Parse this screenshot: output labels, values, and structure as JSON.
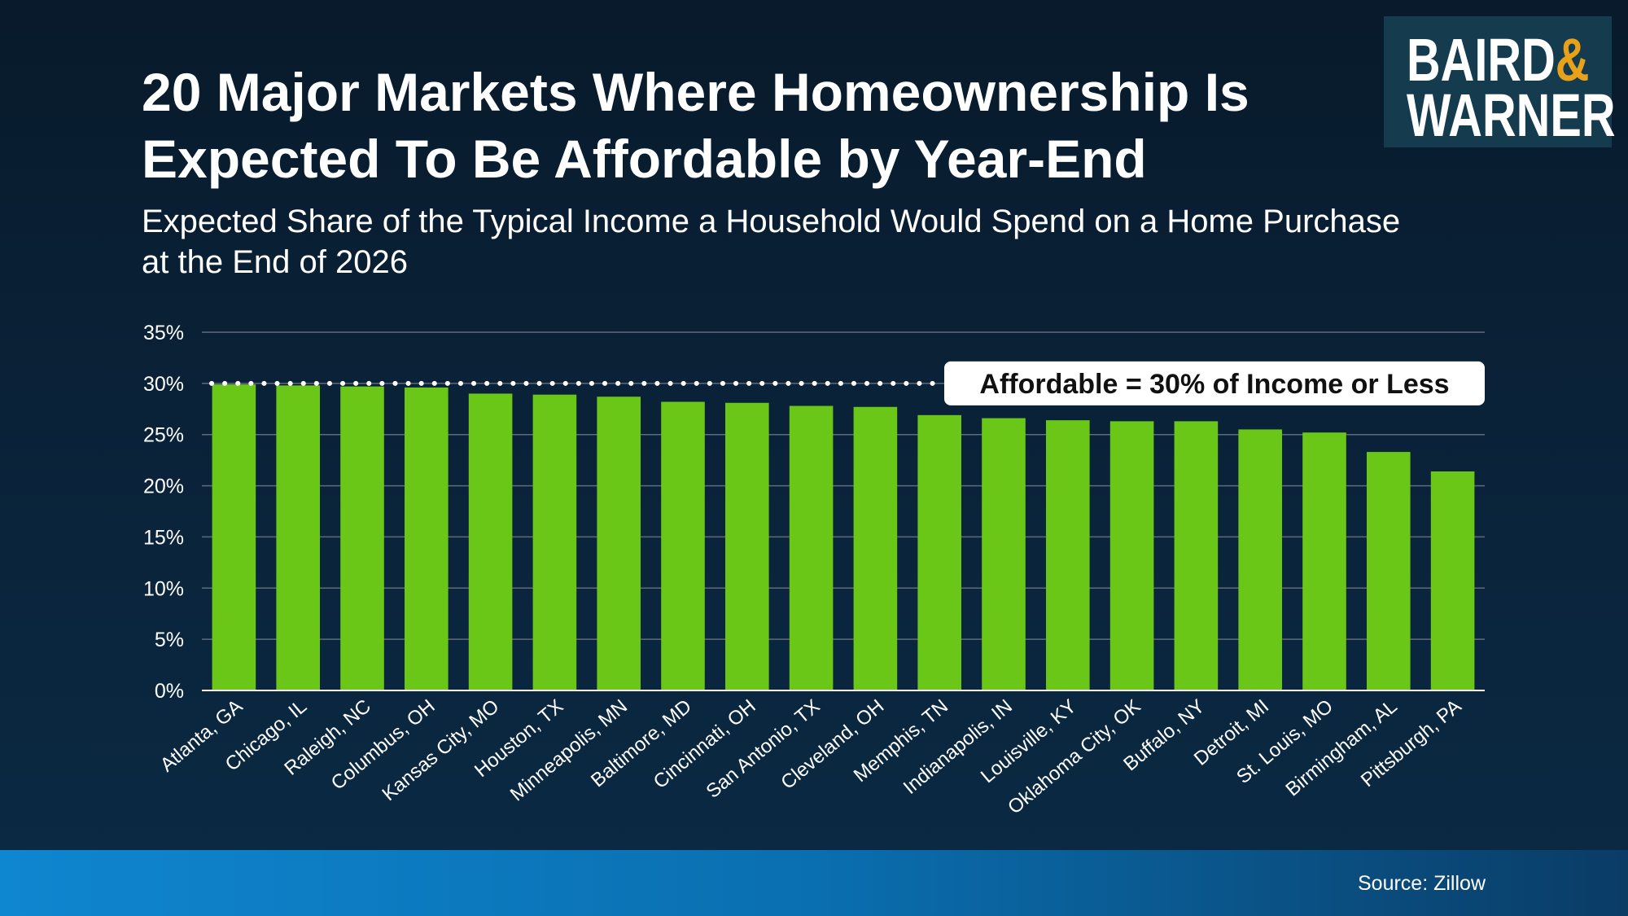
{
  "header": {
    "title_line1": "20 Major Markets Where Homeownership Is",
    "title_line2": "Expected To Be Affordable by Year-End",
    "subtitle_line1": "Expected Share of the Typical Income a Household Would Spend on a Home Purchase",
    "subtitle_line2": "at the End of 2026"
  },
  "logo": {
    "line1": "BAIRD",
    "ampersand": "&",
    "line2": "WARNER"
  },
  "footer": {
    "source": "Source: Zillow"
  },
  "colors": {
    "bar": "#6bc717",
    "grid": "#5c6b7a",
    "axis": "#ffffff",
    "logo_bg": "#153b4f",
    "logo_amp": "#e8a21a"
  },
  "chart_data": {
    "type": "bar",
    "title": "20 Major Markets Where Homeownership Is Expected To Be Affordable by Year-End",
    "subtitle": "Expected Share of the Typical Income a Household Would Spend on a Home Purchase at the End of 2026",
    "xlabel": "",
    "ylabel": "",
    "ylim": [
      0,
      35
    ],
    "ytick_values": [
      0,
      5,
      10,
      15,
      20,
      25,
      30,
      35
    ],
    "ytick_labels": [
      "0%",
      "5%",
      "10%",
      "15%",
      "20%",
      "25%",
      "30%",
      "35%"
    ],
    "grid": true,
    "legend": "none",
    "categories": [
      "Atlanta, GA",
      "Chicago, IL",
      "Raleigh, NC",
      "Columbus, OH",
      "Kansas City, MO",
      "Houston, TX",
      "Minneapolis, MN",
      "Baltimore, MD",
      "Cincinnati, OH",
      "San Antonio, TX",
      "Cleveland, OH",
      "Memphis, TN",
      "Indianapolis, IN",
      "Louisville, KY",
      "Oklahoma City, OK",
      "Buffalo, NY",
      "Detroit, MI",
      "St. Louis, MO",
      "Birmingham, AL",
      "Pittsburgh, PA"
    ],
    "values": [
      29.9,
      29.8,
      29.7,
      29.6,
      29.0,
      28.9,
      28.7,
      28.2,
      28.1,
      27.8,
      27.7,
      26.9,
      26.6,
      26.4,
      26.3,
      26.3,
      25.5,
      25.2,
      23.3,
      21.4
    ],
    "annotation": {
      "value": 30,
      "label": "Affordable = 30% of Income or Less"
    }
  }
}
